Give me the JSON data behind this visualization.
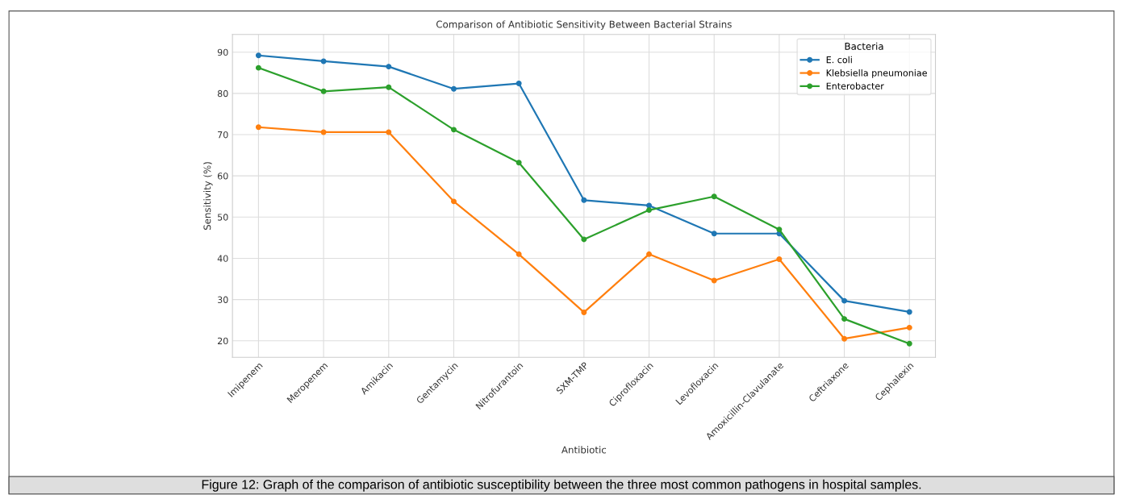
{
  "chart_data": {
    "type": "line",
    "title": "Comparison of Antibiotic Sensitivity Between Bacterial Strains",
    "xlabel": "Antibiotic",
    "ylabel": "Sensitivity (%)",
    "legend_title": "Bacteria",
    "categories": [
      "Imipenem",
      "Meropenem",
      "Amikacin",
      "Gentamycin",
      "Nitrofurantoin",
      "SXM-TMP",
      "Ciprofloxacin",
      "Levofloxacin",
      "Amoxicillin-Clavulanate",
      "Ceftriaxone",
      "Cephalexin"
    ],
    "series": [
      {
        "name": "E. coli",
        "color": "#1f77b4",
        "values": [
          89.2,
          87.8,
          86.5,
          81.1,
          82.4,
          54.1,
          52.8,
          46.0,
          46.0,
          29.7,
          27.0
        ]
      },
      {
        "name": "Klebsiella pneumoniae",
        "color": "#ff7f0e",
        "values": [
          71.8,
          70.6,
          70.6,
          53.8,
          41.0,
          26.9,
          41.0,
          34.6,
          39.8,
          20.5,
          23.2
        ]
      },
      {
        "name": "Enterobacter",
        "color": "#2ca02c",
        "values": [
          86.2,
          80.5,
          81.5,
          71.2,
          63.2,
          44.6,
          51.7,
          55.0,
          47.0,
          25.3,
          19.3
        ]
      }
    ],
    "ylim": [
      16,
      94.3
    ],
    "yticks": [
      20,
      30,
      40,
      50,
      60,
      70,
      80,
      90
    ],
    "grid": true,
    "legend": "top right",
    "marker": "circle",
    "line_style": "solid",
    "annotations": [
      "Figure 12: Graph of the comparison of antibiotic susceptibility between the three most common pathogens in hospital samples."
    ]
  }
}
